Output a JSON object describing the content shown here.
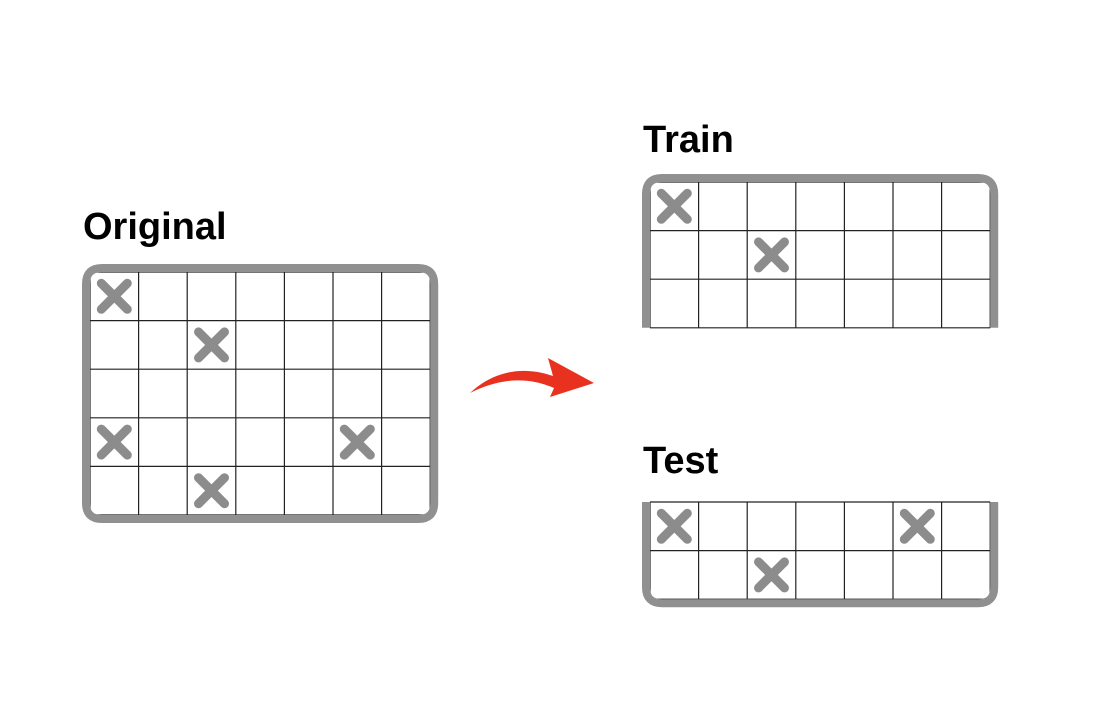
{
  "labels": {
    "original": "Original",
    "train": "Train",
    "test": "Test"
  },
  "colors": {
    "frame": "#909090",
    "grid": "#222222",
    "mark": "#8c8c8c",
    "arrow": "#e8321f"
  },
  "grid": {
    "columns": 7,
    "mark_icon": "x-mark-icon"
  },
  "panels": {
    "original": {
      "rows": 5,
      "marks": [
        [
          0,
          0
        ],
        [
          1,
          2
        ],
        [
          3,
          0
        ],
        [
          3,
          5
        ],
        [
          4,
          2
        ]
      ]
    },
    "train": {
      "rows": 3,
      "marks": [
        [
          0,
          0
        ],
        [
          1,
          2
        ]
      ]
    },
    "test": {
      "rows": 2,
      "marks": [
        [
          0,
          0
        ],
        [
          0,
          5
        ],
        [
          1,
          2
        ]
      ]
    }
  }
}
